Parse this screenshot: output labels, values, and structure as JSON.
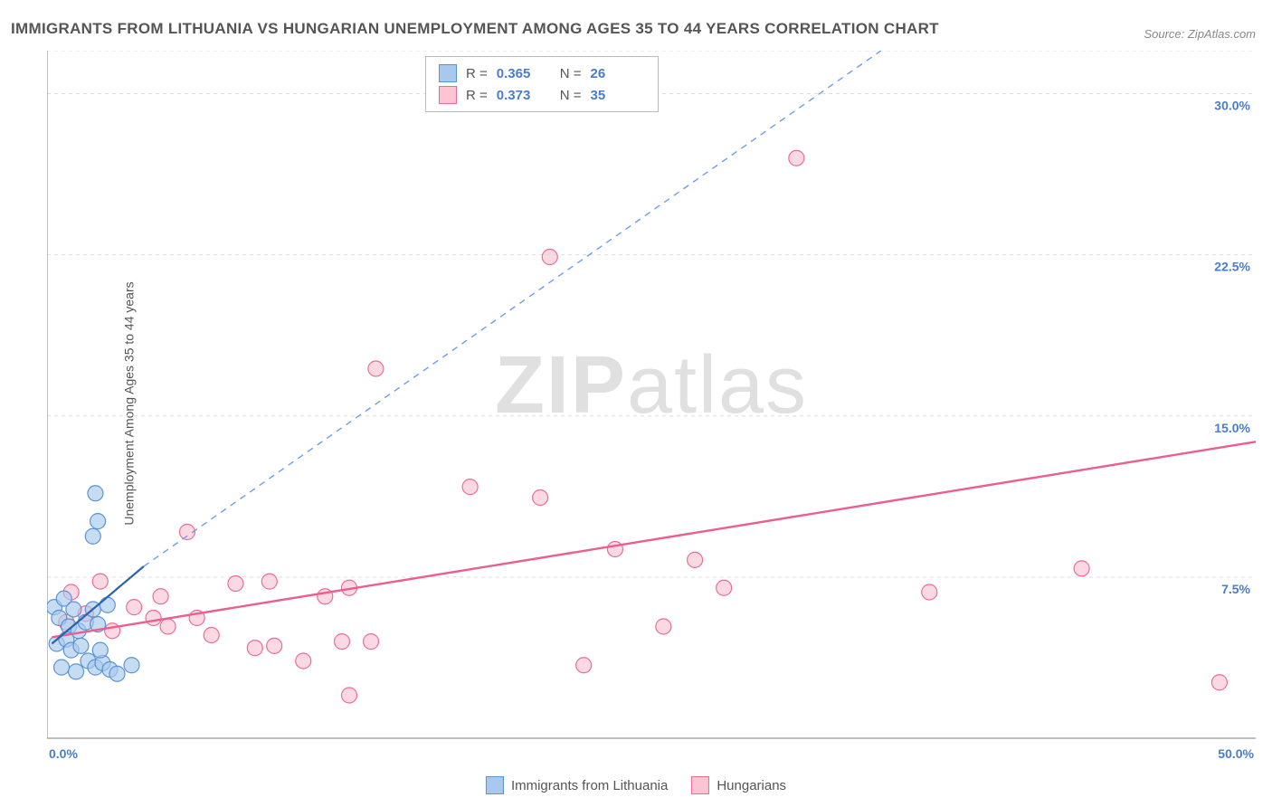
{
  "chart": {
    "type": "scatter",
    "title": "IMMIGRANTS FROM LITHUANIA VS HUNGARIAN UNEMPLOYMENT AMONG AGES 35 TO 44 YEARS CORRELATION CHART",
    "source": "Source: ZipAtlas.com",
    "y_axis_label": "Unemployment Among Ages 35 to 44 years",
    "watermark_zip": "ZIP",
    "watermark_atlas": "atlas",
    "xlim": [
      0,
      50
    ],
    "ylim": [
      0,
      32
    ],
    "y_ticks": [
      7.5,
      15.0,
      22.5,
      30.0
    ],
    "y_tick_labels": [
      "7.5%",
      "15.0%",
      "22.5%",
      "30.0%"
    ],
    "x_tick_min_label": "0.0%",
    "x_tick_max_label": "50.0%",
    "background_color": "#ffffff",
    "grid_color": "#dddddd",
    "axis_color": "#999999",
    "title_color": "#555555",
    "label_color": "#555555",
    "tick_label_color": "#4a7dc7",
    "title_fontsize": 17,
    "label_fontsize": 14,
    "tick_fontsize": 14,
    "marker_radius": 8.5,
    "series": {
      "blue": {
        "label": "Immigrants from Lithuania",
        "short_group": "Immigrants",
        "r_value": "0.365",
        "n_value": "26",
        "fill": "#a8c9ed",
        "stroke": "#5b93d4",
        "trend_solid_color": "#2a62af",
        "trend_dash_color": "#6b9fe8",
        "trend_solid": {
          "x1": 0.2,
          "y1": 4.4,
          "x2": 4.0,
          "y2": 8.0
        },
        "trend_dash": {
          "x1": 4.0,
          "y1": 8.0,
          "x2": 34.5,
          "y2": 32.0
        },
        "points": [
          {
            "x": 0.3,
            "y": 6.1
          },
          {
            "x": 0.5,
            "y": 5.6
          },
          {
            "x": 0.7,
            "y": 6.5
          },
          {
            "x": 0.9,
            "y": 5.2
          },
          {
            "x": 1.1,
            "y": 6.0
          },
          {
            "x": 1.3,
            "y": 5.0
          },
          {
            "x": 0.4,
            "y": 4.4
          },
          {
            "x": 0.8,
            "y": 4.6
          },
          {
            "x": 1.0,
            "y": 4.1
          },
          {
            "x": 1.4,
            "y": 4.3
          },
          {
            "x": 1.7,
            "y": 3.6
          },
          {
            "x": 2.0,
            "y": 3.3
          },
          {
            "x": 2.3,
            "y": 3.5
          },
          {
            "x": 2.6,
            "y": 3.2
          },
          {
            "x": 2.2,
            "y": 4.1
          },
          {
            "x": 2.9,
            "y": 3.0
          },
          {
            "x": 0.6,
            "y": 3.3
          },
          {
            "x": 1.2,
            "y": 3.1
          },
          {
            "x": 1.6,
            "y": 5.4
          },
          {
            "x": 1.9,
            "y": 6.0
          },
          {
            "x": 2.1,
            "y": 5.3
          },
          {
            "x": 2.5,
            "y": 6.2
          },
          {
            "x": 2.0,
            "y": 11.4
          },
          {
            "x": 2.1,
            "y": 10.1
          },
          {
            "x": 1.9,
            "y": 9.4
          },
          {
            "x": 3.5,
            "y": 3.4
          }
        ]
      },
      "pink": {
        "label": "Hungarians",
        "short_group": "Hungarians",
        "r_value": "0.373",
        "n_value": "35",
        "fill": "#fac4d3",
        "stroke": "#eb6c96",
        "trend_color": "#ea5e90",
        "trend": {
          "x1": 0.2,
          "y1": 4.7,
          "x2": 50.0,
          "y2": 13.8
        },
        "points": [
          {
            "x": 0.8,
            "y": 5.4
          },
          {
            "x": 1.6,
            "y": 5.8
          },
          {
            "x": 2.7,
            "y": 5.0
          },
          {
            "x": 3.6,
            "y": 6.1
          },
          {
            "x": 4.4,
            "y": 5.6
          },
          {
            "x": 4.7,
            "y": 6.6
          },
          {
            "x": 5.0,
            "y": 5.2
          },
          {
            "x": 6.2,
            "y": 5.6
          },
          {
            "x": 6.8,
            "y": 4.8
          },
          {
            "x": 5.8,
            "y": 9.6
          },
          {
            "x": 7.8,
            "y": 7.2
          },
          {
            "x": 8.6,
            "y": 4.2
          },
          {
            "x": 9.2,
            "y": 7.3
          },
          {
            "x": 9.4,
            "y": 4.3
          },
          {
            "x": 10.6,
            "y": 3.6
          },
          {
            "x": 11.5,
            "y": 6.6
          },
          {
            "x": 12.2,
            "y": 4.5
          },
          {
            "x": 12.5,
            "y": 7.0
          },
          {
            "x": 13.4,
            "y": 4.5
          },
          {
            "x": 13.6,
            "y": 17.2
          },
          {
            "x": 12.5,
            "y": 2.0
          },
          {
            "x": 17.5,
            "y": 11.7
          },
          {
            "x": 20.4,
            "y": 11.2
          },
          {
            "x": 20.8,
            "y": 22.4
          },
          {
            "x": 22.2,
            "y": 3.4
          },
          {
            "x": 23.5,
            "y": 8.8
          },
          {
            "x": 25.5,
            "y": 5.2
          },
          {
            "x": 26.8,
            "y": 8.3
          },
          {
            "x": 28.0,
            "y": 7.0
          },
          {
            "x": 31.0,
            "y": 27.0
          },
          {
            "x": 36.5,
            "y": 6.8
          },
          {
            "x": 42.8,
            "y": 7.9
          },
          {
            "x": 48.5,
            "y": 2.6
          },
          {
            "x": 1.0,
            "y": 6.8
          },
          {
            "x": 2.2,
            "y": 7.3
          }
        ]
      }
    },
    "legend_top": {
      "r_label": "R =",
      "n_label": "N ="
    }
  }
}
